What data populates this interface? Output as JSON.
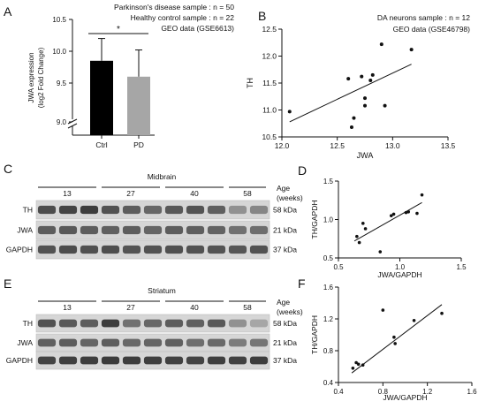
{
  "panels": [
    {
      "id": "A",
      "letter": "A"
    },
    {
      "id": "B",
      "letter": "B"
    },
    {
      "id": "C",
      "letter": "C"
    },
    {
      "id": "D",
      "letter": "D"
    },
    {
      "id": "E",
      "letter": "E"
    },
    {
      "id": "F",
      "letter": "F"
    }
  ],
  "panel_a": {
    "note_lines": [
      "Parkinson's disease sample : n = 50",
      "Healthy control sample : n = 22",
      "GEO data (GSE6613)"
    ],
    "significance": "*"
  },
  "panel_b": {
    "note_lines": [
      "DA neurons sample : n = 12",
      "GEO data (GSE46798)"
    ]
  },
  "blot_c": {
    "region": "Midbrain",
    "age_header": [
      "Age",
      "(weeks)"
    ],
    "ages": [
      "13",
      "27",
      "40",
      "58"
    ],
    "rows": [
      {
        "name": "TH",
        "size": "58 kDa",
        "intensity": [
          0.78,
          0.82,
          0.85,
          0.75,
          0.7,
          0.65,
          0.72,
          0.74,
          0.68,
          0.45,
          0.5
        ]
      },
      {
        "name": "JWA",
        "size": "21 kDa",
        "intensity": [
          0.7,
          0.72,
          0.7,
          0.68,
          0.7,
          0.66,
          0.7,
          0.69,
          0.67,
          0.6,
          0.62
        ]
      },
      {
        "name": "GAPDH",
        "size": "37 kDa",
        "intensity": [
          0.75,
          0.78,
          0.76,
          0.77,
          0.74,
          0.75,
          0.76,
          0.75,
          0.74,
          0.73,
          0.75
        ]
      }
    ]
  },
  "blot_e": {
    "region": "Striatum",
    "age_header": [
      "Age",
      "(weeks)"
    ],
    "ages": [
      "13",
      "27",
      "40",
      "58"
    ],
    "rows": [
      {
        "name": "TH",
        "size": "58 kDa",
        "intensity": [
          0.75,
          0.72,
          0.7,
          0.85,
          0.6,
          0.65,
          0.7,
          0.68,
          0.72,
          0.45,
          0.35
        ]
      },
      {
        "name": "JWA",
        "size": "21 kDa",
        "intensity": [
          0.68,
          0.7,
          0.66,
          0.7,
          0.64,
          0.66,
          0.68,
          0.62,
          0.64,
          0.55,
          0.58
        ]
      },
      {
        "name": "GAPDH",
        "size": "37 kDa",
        "intensity": [
          0.82,
          0.84,
          0.85,
          0.86,
          0.85,
          0.84,
          0.83,
          0.82,
          0.84,
          0.83,
          0.85
        ]
      }
    ]
  },
  "chart_data": [
    {
      "id": "A",
      "type": "bar",
      "categories": [
        "Ctrl",
        "PD"
      ],
      "values": [
        9.85,
        9.6
      ],
      "error": [
        0.35,
        0.42
      ],
      "colors": [
        "#000000",
        "#a6a6a6"
      ],
      "xlabel": "",
      "ylabel": "JWA expression\n(log2 Fold Change)",
      "ylim": [
        0,
        10.5
      ],
      "axis_break": [
        0,
        9.0
      ],
      "yticks": [
        0.0,
        9.0,
        9.5,
        10.0,
        10.5
      ],
      "ytick_labels": [
        "0.0",
        "9.0",
        "9.5",
        "10.0",
        "10.5"
      ]
    },
    {
      "id": "B",
      "type": "scatter",
      "xlabel": "JWA",
      "ylabel": "TH",
      "xlim": [
        12.0,
        13.5
      ],
      "ylim": [
        10.5,
        12.5
      ],
      "xticks": [
        "12.0",
        "12.5",
        "13.0",
        "13.5"
      ],
      "yticks": [
        "10.5",
        "11.0",
        "11.5",
        "12.0",
        "12.5"
      ],
      "x": [
        12.07,
        12.6,
        12.63,
        12.65,
        12.72,
        12.75,
        12.75,
        12.8,
        12.82,
        12.9,
        12.93,
        13.17
      ],
      "y": [
        10.97,
        11.58,
        10.68,
        10.85,
        11.62,
        11.22,
        11.08,
        11.55,
        11.65,
        12.22,
        11.08,
        12.12
      ],
      "fit": [
        [
          12.07,
          10.78
        ],
        [
          13.17,
          11.85
        ]
      ]
    },
    {
      "id": "D",
      "type": "scatter",
      "xlabel": "JWA/GAPDH",
      "ylabel": "TH/GAPDH",
      "xlim": [
        0.5,
        1.5
      ],
      "ylim": [
        0.5,
        1.5
      ],
      "xticks": [
        "0.5",
        "1.0",
        "1.5"
      ],
      "yticks": [
        "0.5",
        "1.0",
        "1.5"
      ],
      "x": [
        0.65,
        0.67,
        0.7,
        0.72,
        0.84,
        0.93,
        0.95,
        1.05,
        1.07,
        1.14,
        1.18
      ],
      "y": [
        0.78,
        0.7,
        0.95,
        0.88,
        0.58,
        1.05,
        1.07,
        1.09,
        1.1,
        1.08,
        1.32
      ],
      "fit": [
        [
          0.63,
          0.72
        ],
        [
          1.18,
          1.22
        ]
      ]
    },
    {
      "id": "F",
      "type": "scatter",
      "xlabel": "JWA/GAPDH",
      "ylabel": "TH/GAPDH",
      "xlim": [
        0.4,
        1.6
      ],
      "ylim": [
        0.4,
        1.6
      ],
      "xticks": [
        "0.4",
        "0.8",
        "1.2",
        "1.6"
      ],
      "yticks": [
        "0.4",
        "0.8",
        "1.2",
        "1.6"
      ],
      "x": [
        0.53,
        0.56,
        0.58,
        0.62,
        0.8,
        0.9,
        0.91,
        1.08,
        1.33
      ],
      "y": [
        0.58,
        0.65,
        0.63,
        0.62,
        1.31,
        0.97,
        0.89,
        1.18,
        1.27
      ],
      "fit": [
        [
          0.52,
          0.52
        ],
        [
          1.33,
          1.38
        ]
      ]
    }
  ]
}
